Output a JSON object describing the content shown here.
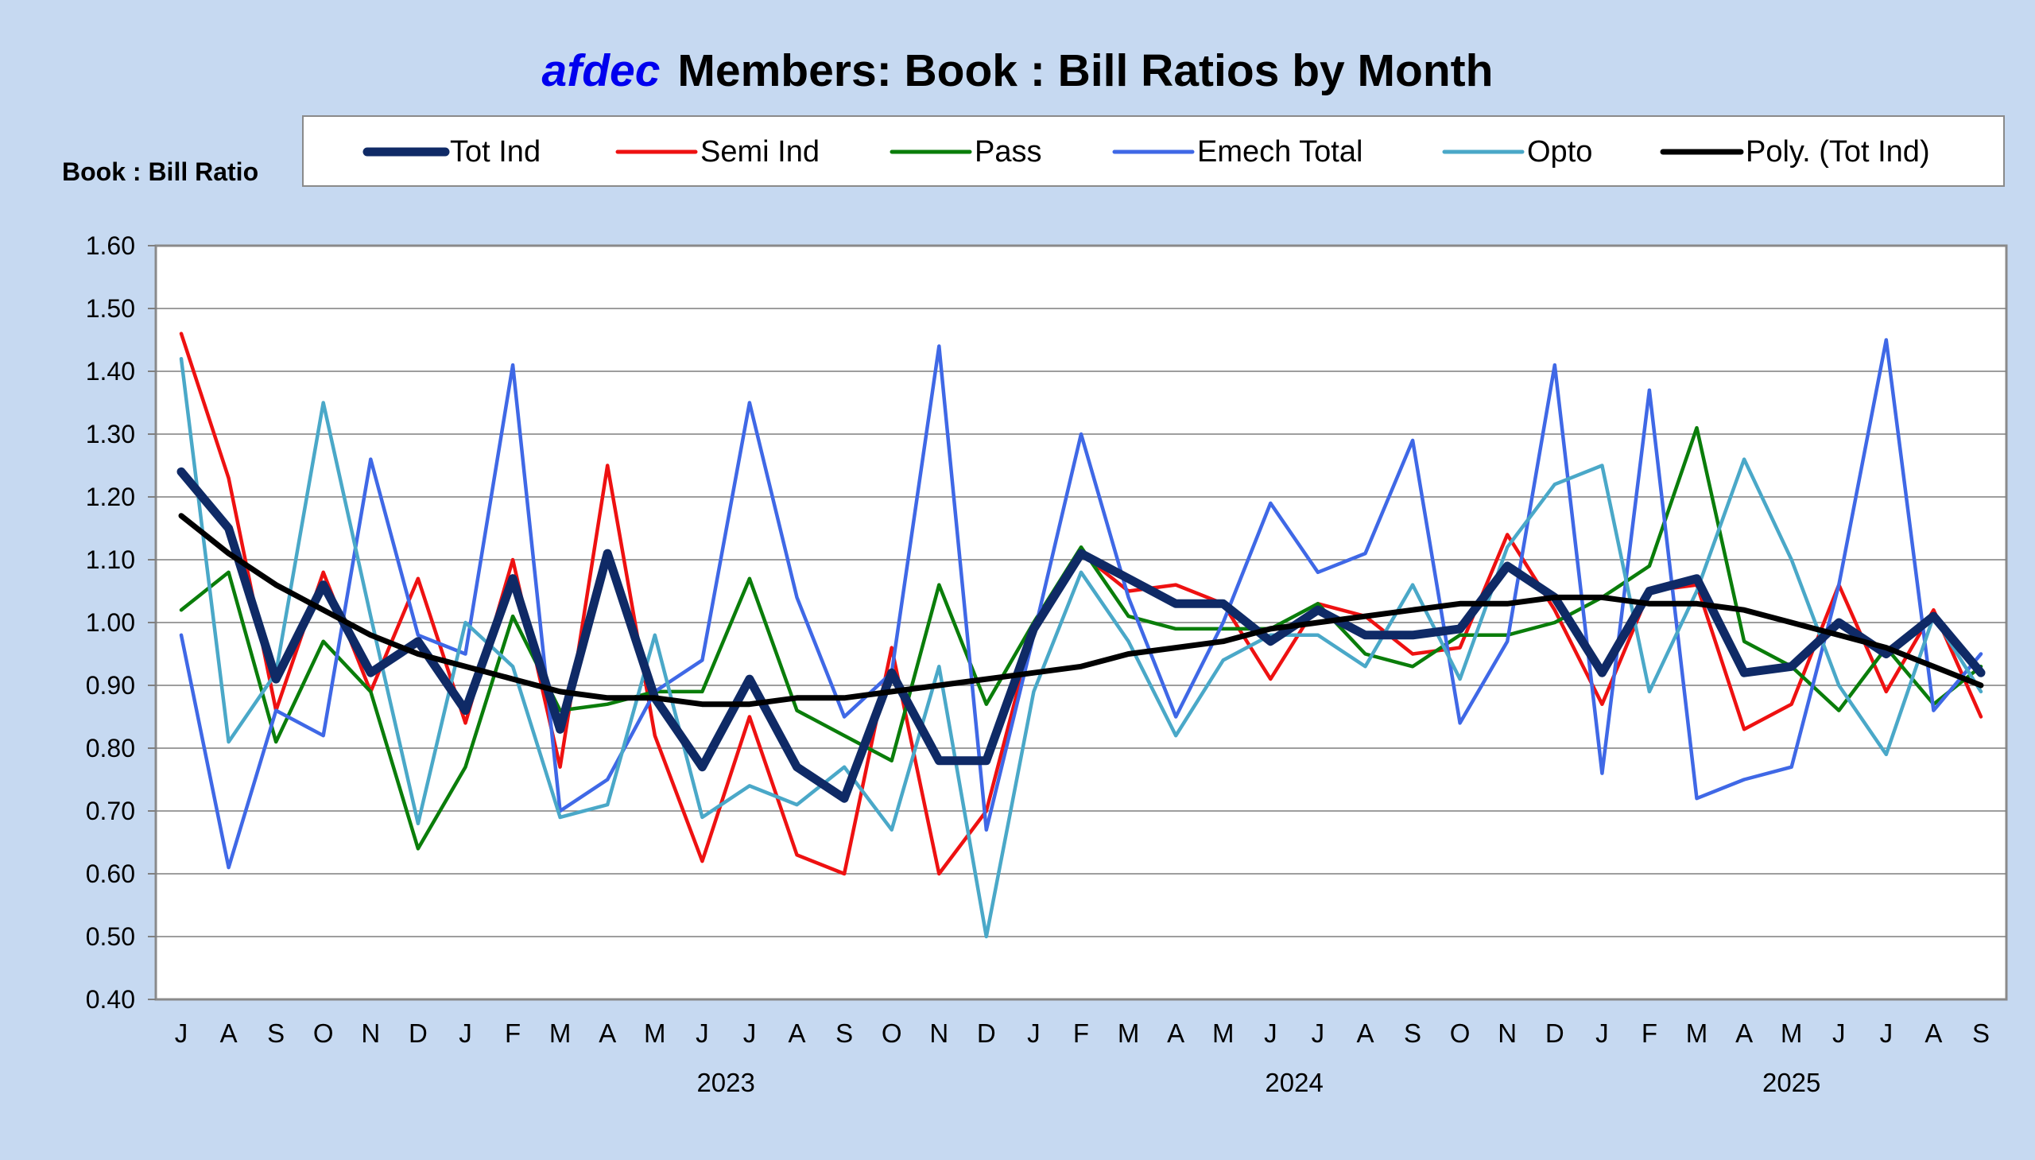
{
  "title": {
    "brand": "afdec",
    "rest": "Members: Book : Bill Ratios by Month"
  },
  "chart_data": {
    "type": "line",
    "title": "afdec Members: Book : Bill Ratios by Month",
    "ylabel": "Book : Bill Ratio",
    "xlabel": "",
    "ylim": [
      0.4,
      1.6
    ],
    "yticks": [
      "0.40",
      "0.50",
      "0.60",
      "0.70",
      "0.80",
      "0.90",
      "1.00",
      "1.10",
      "1.20",
      "1.30",
      "1.40",
      "1.50",
      "1.60"
    ],
    "grid": true,
    "legend_position": "top",
    "categories": [
      "J",
      "A",
      "S",
      "O",
      "N",
      "D",
      "J",
      "F",
      "M",
      "A",
      "M",
      "J",
      "J",
      "A",
      "S",
      "O",
      "N",
      "D",
      "J",
      "F",
      "M",
      "A",
      "M",
      "J",
      "J",
      "A",
      "S",
      "O",
      "N",
      "D",
      "J",
      "F",
      "M",
      "A",
      "M",
      "J",
      "J",
      "A",
      "S"
    ],
    "year_labels": [
      {
        "label": "2023",
        "center_index": 11.5
      },
      {
        "label": "2024",
        "center_index": 23.5
      },
      {
        "label": "2025",
        "center_index": 34
      }
    ],
    "series": [
      {
        "name": "Semi Ind",
        "color": "#ee1111",
        "width": 4.5,
        "values": [
          1.46,
          1.23,
          0.86,
          1.08,
          0.89,
          1.07,
          0.84,
          1.1,
          0.77,
          1.25,
          0.82,
          0.62,
          0.85,
          0.63,
          0.6,
          0.96,
          0.6,
          0.7,
          0.99,
          1.11,
          1.05,
          1.06,
          1.03,
          0.91,
          1.03,
          1.01,
          0.95,
          0.96,
          1.14,
          1.02,
          0.87,
          1.05,
          1.06,
          0.83,
          0.87,
          1.06,
          0.89,
          1.02,
          0.85
        ]
      },
      {
        "name": "Pass",
        "color": "#0a7d0a",
        "width": 4.5,
        "values": [
          1.02,
          1.08,
          0.81,
          0.97,
          0.89,
          0.64,
          0.77,
          1.01,
          0.86,
          0.87,
          0.89,
          0.89,
          1.07,
          0.86,
          0.82,
          0.78,
          1.06,
          0.87,
          1.0,
          1.12,
          1.01,
          0.99,
          0.99,
          0.99,
          1.03,
          0.95,
          0.93,
          0.98,
          0.98,
          1.0,
          1.04,
          1.09,
          1.31,
          0.97,
          0.93,
          0.86,
          0.96,
          0.87,
          0.93
        ]
      },
      {
        "name": "Emech Total",
        "color": "#3f68e6",
        "width": 4.5,
        "values": [
          0.98,
          0.61,
          0.86,
          0.82,
          1.26,
          0.98,
          0.95,
          1.41,
          0.7,
          0.75,
          0.89,
          0.94,
          1.35,
          1.04,
          0.85,
          0.92,
          1.44,
          0.67,
          0.98,
          1.3,
          1.04,
          0.85,
          1.0,
          1.19,
          1.08,
          1.11,
          1.29,
          0.84,
          0.97,
          1.41,
          0.76,
          1.37,
          0.72,
          0.75,
          0.77,
          1.06,
          1.45,
          0.86,
          0.95
        ]
      },
      {
        "name": "Opto",
        "color": "#4aa8c8",
        "width": 4.5,
        "values": [
          1.42,
          0.81,
          0.92,
          1.35,
          1.01,
          0.68,
          1.0,
          0.93,
          0.69,
          0.71,
          0.98,
          0.69,
          0.74,
          0.71,
          0.77,
          0.67,
          0.93,
          0.5,
          0.89,
          1.08,
          0.97,
          0.82,
          0.94,
          0.98,
          0.98,
          0.93,
          1.06,
          0.91,
          1.12,
          1.22,
          1.25,
          0.89,
          1.05,
          1.26,
          1.1,
          0.9,
          0.79,
          1.01,
          0.89
        ]
      },
      {
        "name": "Tot Ind",
        "color": "#0f2a66",
        "width": 11,
        "values": [
          1.24,
          1.15,
          0.91,
          1.06,
          0.92,
          0.97,
          0.86,
          1.07,
          0.83,
          1.11,
          0.88,
          0.77,
          0.91,
          0.77,
          0.72,
          0.92,
          0.78,
          0.78,
          0.99,
          1.11,
          1.07,
          1.03,
          1.03,
          0.97,
          1.02,
          0.98,
          0.98,
          0.99,
          1.09,
          1.04,
          0.92,
          1.05,
          1.07,
          0.92,
          0.93,
          1.0,
          0.95,
          1.01,
          0.92
        ]
      },
      {
        "name": "Poly. (Tot Ind)",
        "color": "#000000",
        "width": 7,
        "trend": true,
        "values": [
          1.17,
          1.11,
          1.06,
          1.02,
          0.98,
          0.95,
          0.93,
          0.91,
          0.89,
          0.88,
          0.88,
          0.87,
          0.87,
          0.88,
          0.88,
          0.89,
          0.9,
          0.91,
          0.92,
          0.93,
          0.95,
          0.96,
          0.97,
          0.99,
          1.0,
          1.01,
          1.02,
          1.03,
          1.03,
          1.04,
          1.04,
          1.03,
          1.03,
          1.02,
          1.0,
          0.98,
          0.96,
          0.93,
          0.9
        ]
      }
    ],
    "legend_order": [
      "Tot Ind",
      "Semi Ind",
      "Pass",
      "Emech Total",
      "Opto",
      "Poly. (Tot Ind)"
    ]
  }
}
